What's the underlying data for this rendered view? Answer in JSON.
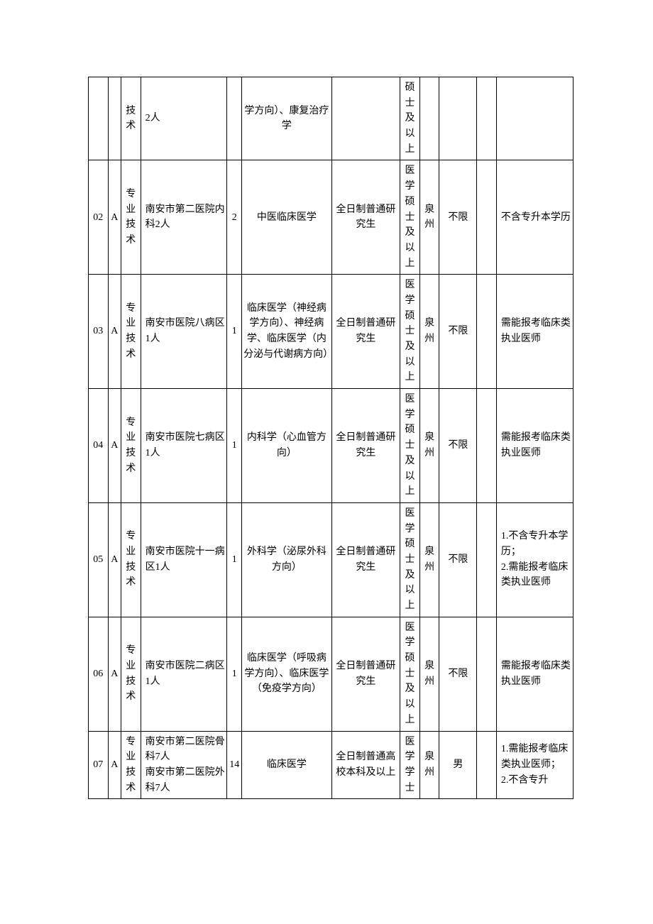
{
  "rows": [
    {
      "c1": "",
      "c2": "",
      "c3": "技术",
      "c4": "2人",
      "c5": "",
      "c6": "学方向）、康复治疗学",
      "c7": "",
      "c8": "硕士及以上",
      "c9": "",
      "c10": "",
      "c11": "",
      "c12": ""
    },
    {
      "c1": "02",
      "c2": "A",
      "c3": "专业技术",
      "c4": "南安市第二医院内科2人",
      "c5": "2",
      "c6": "中医临床医学",
      "c7": "全日制普通研究生",
      "c8": "医学硕士及以上",
      "c9": "泉州",
      "c10": "不限",
      "c11": "",
      "c12": "不含专升本学历"
    },
    {
      "c1": "03",
      "c2": "A",
      "c3": "专业技术",
      "c4": "南安市医院八病区1人",
      "c5": "1",
      "c6": "临床医学（神经病学方向）、神经病学、临床医学（内分泌与代谢病方向）",
      "c7": "全日制普通研究生",
      "c8": "医学硕士及以上",
      "c9": "泉州",
      "c10": "不限",
      "c11": "",
      "c12": "需能报考临床类执业医师"
    },
    {
      "c1": "04",
      "c2": "A",
      "c3": "专业技术",
      "c4": "南安市医院七病区1人",
      "c5": "1",
      "c6": "内科学（心血管方向）",
      "c7": "全日制普通研究生",
      "c8": "医学硕士及以上",
      "c9": "泉州",
      "c10": "不限",
      "c11": "",
      "c12": "需能报考临床类执业医师"
    },
    {
      "c1": "05",
      "c2": "A",
      "c3": "专业技术",
      "c4": "南安市医院十一病区1人",
      "c5": "1",
      "c6": "外科学（泌尿外科方向）",
      "c7": "全日制普通研究生",
      "c8": "医学硕士及以上",
      "c9": "泉州",
      "c10": "不限",
      "c11": "",
      "c12": "1.不含专升本学历；\n2.需能报考临床类执业医师"
    },
    {
      "c1": "06",
      "c2": "A",
      "c3": "专业技术",
      "c4": "南安市医院二病区1人",
      "c5": "1",
      "c6": "临床医学（呼吸病学方向）、临床医学（免疫学方向）",
      "c7": "全日制普通研究生",
      "c8": "医学硕士及以上",
      "c9": "泉州",
      "c10": "不限",
      "c11": "",
      "c12": "需能报考临床类执业医师"
    },
    {
      "c1": "07",
      "c2": "A",
      "c3": "专业技术",
      "c4": "南安市第二医院骨科7人\n南安市第二医院外科7人",
      "c5": "14",
      "c6": "临床医学",
      "c7": "全日制普通高校本科及以上",
      "c8": "医学学士",
      "c9": "泉州",
      "c10": "男",
      "c11": "",
      "c12": "1.需能报考临床类执业医师；\n2.不含专升"
    }
  ]
}
